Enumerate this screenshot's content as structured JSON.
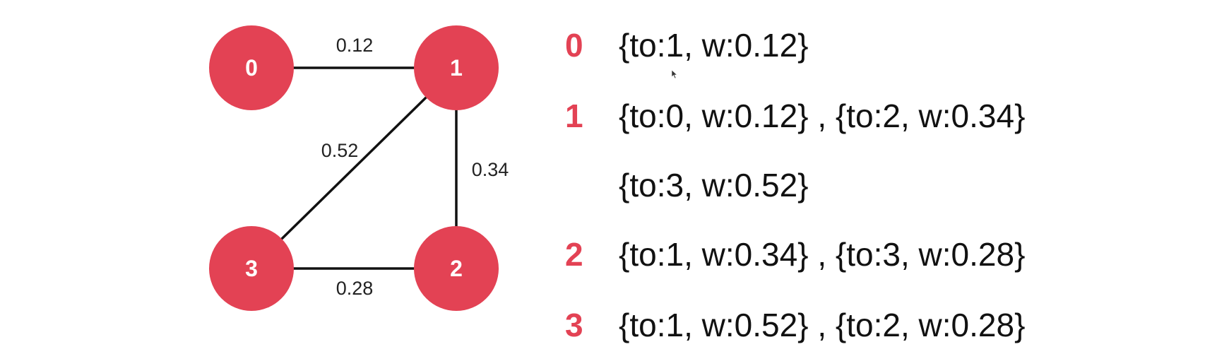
{
  "graph": {
    "nodes": [
      {
        "id": "0",
        "label": "0"
      },
      {
        "id": "1",
        "label": "1"
      },
      {
        "id": "2",
        "label": "2"
      },
      {
        "id": "3",
        "label": "3"
      }
    ],
    "edges": [
      {
        "from": "0",
        "to": "1",
        "weight": "0.12"
      },
      {
        "from": "1",
        "to": "2",
        "weight": "0.34"
      },
      {
        "from": "1",
        "to": "3",
        "weight": "0.52"
      },
      {
        "from": "3",
        "to": "2",
        "weight": "0.28"
      }
    ],
    "colors": {
      "node": "#e34254",
      "node_text": "#ffffff",
      "edge": "#111111",
      "index_text": "#e34254"
    }
  },
  "adjacency": {
    "rows": [
      {
        "index": "0",
        "text": "{to:1, w:0.12}"
      },
      {
        "index": "1",
        "text": "{to:0, w:0.12} , {to:2, w:0.34}"
      },
      {
        "index": "",
        "text": "{to:3, w:0.52}"
      },
      {
        "index": "2",
        "text": "{to:1, w:0.34} , {to:3, w:0.28}"
      },
      {
        "index": "3",
        "text": "{to:1, w:0.52} , {to:2, w:0.28}"
      }
    ]
  }
}
